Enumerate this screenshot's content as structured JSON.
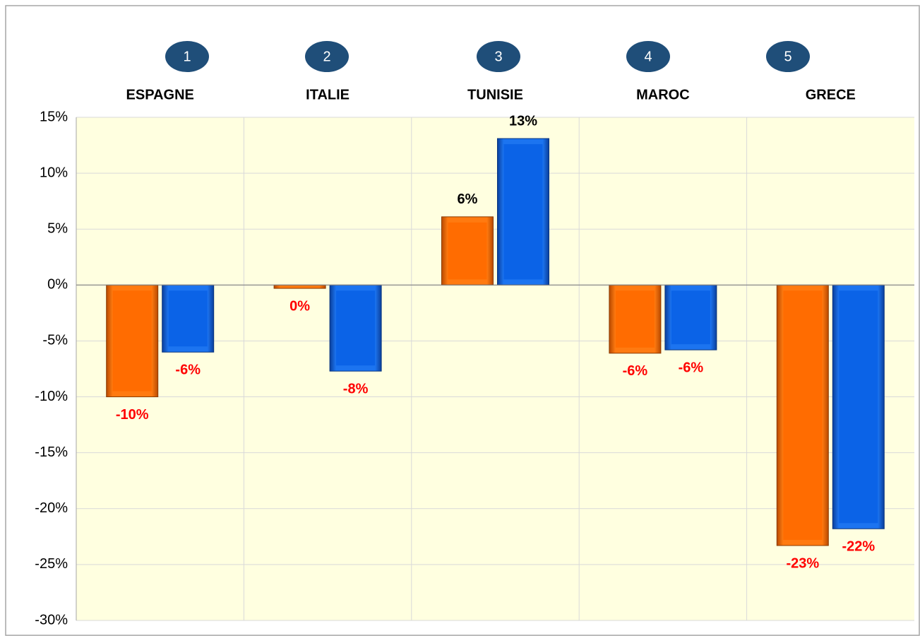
{
  "chart_data": {
    "type": "bar",
    "badges": [
      "1",
      "2",
      "3",
      "4",
      "5"
    ],
    "categories": [
      "ESPAGNE",
      "ITALIE",
      "TUNISIE",
      "MAROC",
      "GRECE"
    ],
    "series": [
      {
        "color": "#ff6a00",
        "values": [
          -10,
          -0.3,
          6.1,
          -6.1,
          -23.3
        ],
        "value_labels": [
          "-10%",
          "0%",
          "6%",
          "-6%",
          "-23%"
        ]
      },
      {
        "color": "#0a62e6",
        "values": [
          -6,
          -7.7,
          13.1,
          -5.8,
          -21.8
        ],
        "value_labels": [
          "-6%",
          "-8%",
          "13%",
          "-6%",
          "-22%"
        ]
      }
    ],
    "ylim": [
      -30,
      15
    ],
    "yticks": [
      {
        "value": -30,
        "label": "-30%"
      },
      {
        "value": -25,
        "label": "-25%"
      },
      {
        "value": -20,
        "label": "-20%"
      },
      {
        "value": -15,
        "label": "-15%"
      },
      {
        "value": -10,
        "label": "-10%"
      },
      {
        "value": -5,
        "label": "-5%"
      },
      {
        "value": 0,
        "label": "0%"
      },
      {
        "value": 5,
        "label": "5%"
      },
      {
        "value": 10,
        "label": "10%"
      },
      {
        "value": 15,
        "label": "15%"
      }
    ],
    "grid": true
  }
}
